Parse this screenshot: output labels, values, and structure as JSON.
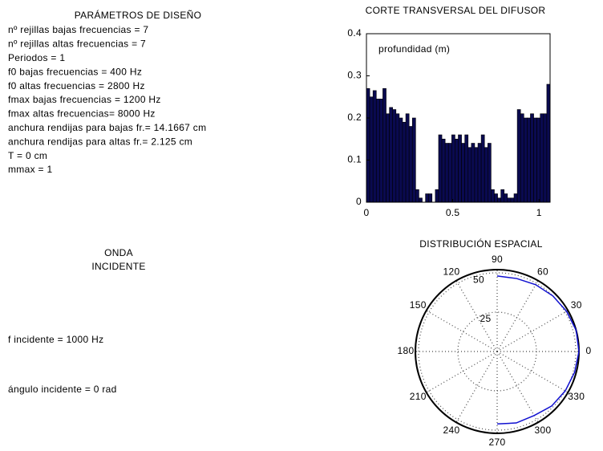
{
  "parameters": {
    "title": "PARÁMETROS DE DISEÑO",
    "lines": [
      "nº rejillas bajas frecuencias = 7",
      "nº rejillas altas frecuencias = 7",
      "Periodos = 1",
      "f0 bajas frecuencias = 400 Hz",
      "f0 altas frecuencias = 2800 Hz",
      "fmax bajas frecuencias = 1200 Hz",
      "fmax altas frecuencias= 8000 Hz",
      "anchura rendijas para bajas fr.= 14.1667 cm",
      "anchura rendijas para altas fr.= 2.125 cm",
      "T = 0 cm",
      "mmax = 1"
    ]
  },
  "incident": {
    "title": [
      "ONDA",
      "INCIDENTE"
    ],
    "frequency": "f incidente = 1000 Hz",
    "angle": "ángulo incidente = 0 rad"
  },
  "chart_data": [
    {
      "type": "histogram",
      "title": "CORTE TRANSVERSAL DEL DIFUSOR",
      "annotation": "profundidad (m)",
      "color": "#0a0a50",
      "bins": [
        0,
        0.019,
        0.038,
        0.057,
        0.076,
        0.095,
        0.114,
        0.133,
        0.152,
        0.171,
        0.19,
        0.209,
        0.228,
        0.247,
        0.266,
        0.285,
        0.304,
        0.323,
        0.342,
        0.361,
        0.38,
        0.399,
        0.418,
        0.437,
        0.456,
        0.475,
        0.494,
        0.513,
        0.532,
        0.551,
        0.57,
        0.589,
        0.608,
        0.627,
        0.646,
        0.665,
        0.684,
        0.703,
        0.722,
        0.741,
        0.76,
        0.779,
        0.798,
        0.817,
        0.836,
        0.855,
        0.874,
        0.893,
        0.912,
        0.931,
        0.95,
        0.969,
        0.988,
        1.007,
        1.026,
        1.045,
        1.064
      ],
      "values": [
        0.27,
        0.25,
        0.265,
        0.245,
        0.245,
        0.27,
        0.21,
        0.225,
        0.22,
        0.21,
        0.2,
        0.19,
        0.21,
        0.18,
        0.2,
        0.03,
        0.01,
        0,
        0.02,
        0.02,
        0,
        0.03,
        0.16,
        0.15,
        0.14,
        0.14,
        0.16,
        0.15,
        0.16,
        0.14,
        0.16,
        0.13,
        0.14,
        0.13,
        0.14,
        0.16,
        0.13,
        0.14,
        0.03,
        0.02,
        0.01,
        0.03,
        0.02,
        0.01,
        0.01,
        0.02,
        0.22,
        0.21,
        0.2,
        0.2,
        0.21,
        0.2,
        0.2,
        0.21,
        0.21,
        0.28
      ],
      "xlim": [
        0,
        1.064
      ],
      "xticks": [
        0,
        0.5,
        1
      ],
      "ylim": [
        0,
        0.4
      ],
      "yticks": [
        0,
        0.1,
        0.2,
        0.3,
        0.4
      ]
    },
    {
      "type": "polar",
      "title": "DISTRIBUCIÓN ESPACIAL",
      "rlim": [
        0,
        52
      ],
      "rticks": [
        25,
        50
      ],
      "thetaticks": [
        0,
        30,
        60,
        90,
        120,
        150,
        180,
        210,
        240,
        270,
        300,
        330
      ],
      "series": [
        {
          "color": "#1010d0",
          "theta": [
            90,
            75,
            60,
            45,
            30,
            15,
            0,
            -15,
            -30,
            -45,
            -60,
            -75,
            -90
          ],
          "r": [
            48,
            48,
            49,
            50,
            51,
            52,
            52,
            51,
            50,
            49,
            47,
            47,
            46
          ]
        }
      ]
    }
  ]
}
